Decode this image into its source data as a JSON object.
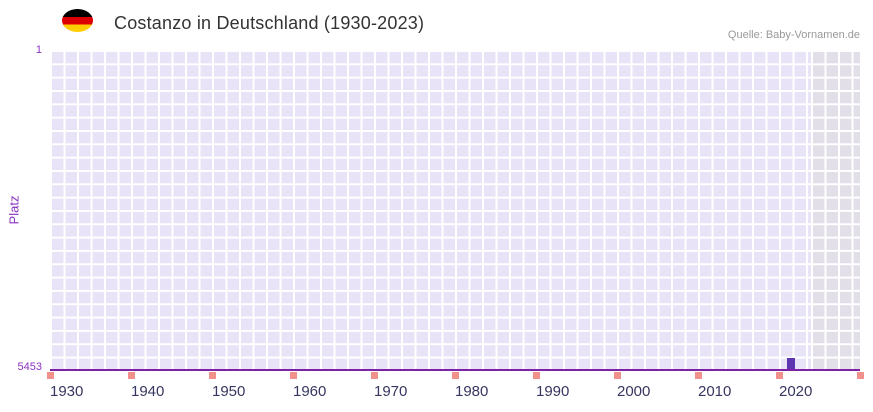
{
  "header": {
    "title": "Costanzo in Deutschland (1930-2023)",
    "source": "Quelle: Baby-Vornamen.de",
    "flag_icon": "german-flag",
    "flag_colors": [
      "#000000",
      "#dd0000",
      "#ffce00"
    ]
  },
  "chart_data": {
    "type": "bar",
    "title": "Costanzo in Deutschland (1930-2023)",
    "name": "Costanzo",
    "region": "Deutschland",
    "ylabel": "Platz",
    "xlabel": "",
    "grid": true,
    "legend": "none",
    "y_axis": {
      "inverted": true,
      "min": 1,
      "max": 5453,
      "top_label": "1",
      "bottom_label": "5453"
    },
    "x_axis": {
      "plot_start_year": 1930,
      "plot_end_year": 2030,
      "data_end_year": 2023,
      "tick_interval": 10,
      "tick_labels": [
        "1930",
        "1940",
        "1950",
        "1960",
        "1970",
        "1980",
        "1990",
        "2000",
        "2010",
        "2020"
      ]
    },
    "series": [
      {
        "name": "Costanzo",
        "points": [
          {
            "year": 2021,
            "rank": 5250
          }
        ]
      }
    ],
    "shaded_region": {
      "from_year": 2024,
      "to_year": 2030
    },
    "colors": {
      "bar": "#5e35b1",
      "grid_cell": "#e8e3f7",
      "grid_line": "#ffffff",
      "shaded_region_cell": "#e2dfe9",
      "axis_line": "#7e22a5",
      "tick_mark": "#f0918c",
      "y_label": "#8a34c0",
      "x_label": "#363660",
      "title": "#333333",
      "source": "#999999"
    }
  }
}
